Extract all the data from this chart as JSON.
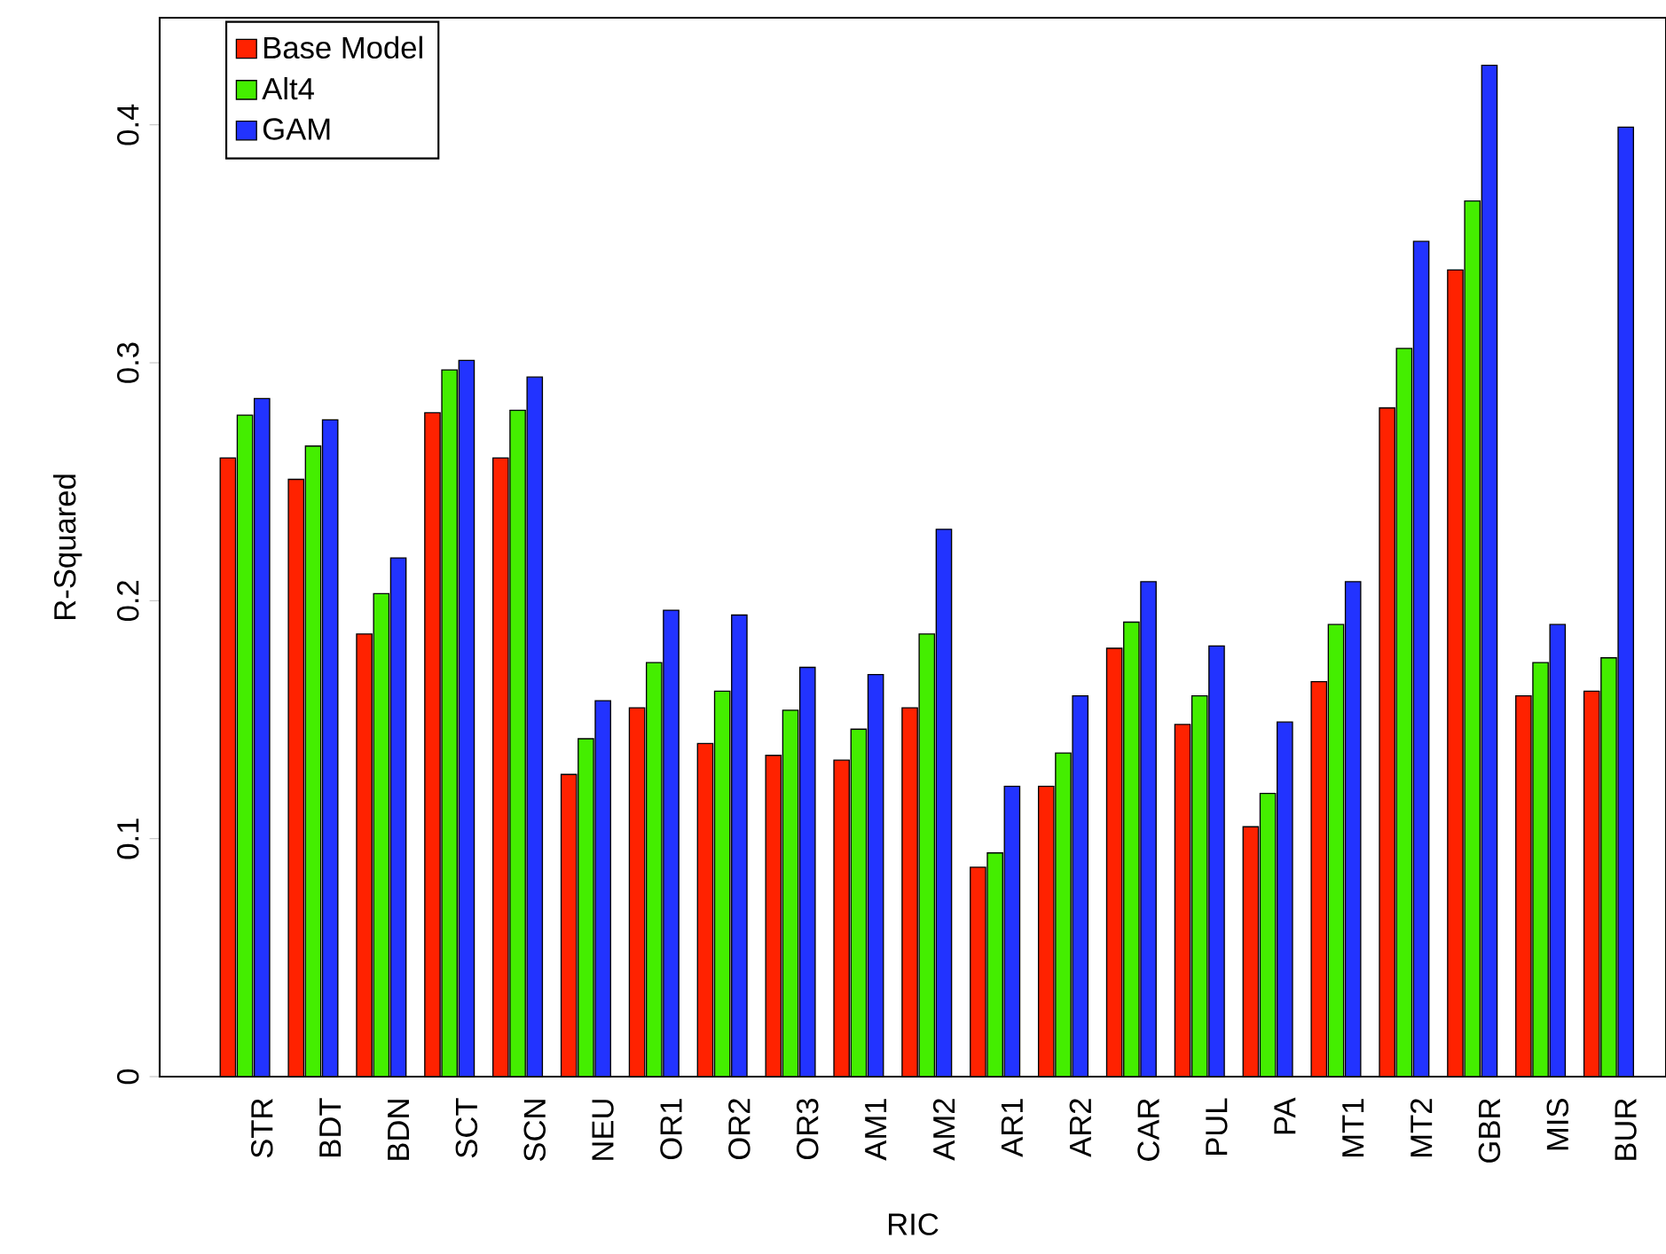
{
  "chart_data": {
    "type": "bar",
    "xlabel": "RIC",
    "ylabel": "R-Squared",
    "categories": [
      "STR",
      "BDT",
      "BDN",
      "SCT",
      "SCN",
      "NEU",
      "OR1",
      "OR2",
      "OR3",
      "AM1",
      "AM2",
      "AR1",
      "AR2",
      "CAR",
      "PUL",
      "PA",
      "MT1",
      "MT2",
      "GBR",
      "MIS",
      "BUR"
    ],
    "series": [
      {
        "name": "Base Model",
        "color": "#ff2200",
        "values": [
          0.26,
          0.251,
          0.186,
          0.279,
          0.26,
          0.127,
          0.155,
          0.14,
          0.135,
          0.133,
          0.155,
          0.088,
          0.122,
          0.18,
          0.148,
          0.105,
          0.166,
          0.281,
          0.339,
          0.16,
          0.162
        ]
      },
      {
        "name": "Alt4",
        "color": "#44ee00",
        "values": [
          0.278,
          0.265,
          0.203,
          0.297,
          0.28,
          0.142,
          0.174,
          0.162,
          0.154,
          0.146,
          0.186,
          0.094,
          0.136,
          0.191,
          0.16,
          0.119,
          0.19,
          0.306,
          0.368,
          0.174,
          0.176
        ]
      },
      {
        "name": "GAM",
        "color": "#2233ff",
        "values": [
          0.285,
          0.276,
          0.218,
          0.301,
          0.294,
          0.158,
          0.196,
          0.194,
          0.172,
          0.169,
          0.23,
          0.122,
          0.16,
          0.208,
          0.181,
          0.149,
          0.208,
          0.351,
          0.425,
          0.19,
          0.399
        ]
      }
    ],
    "ylim": [
      0,
      0.445
    ],
    "yticks": [
      0,
      0.1,
      0.2,
      0.3,
      0.4
    ],
    "grid": false,
    "legend": "top left"
  }
}
